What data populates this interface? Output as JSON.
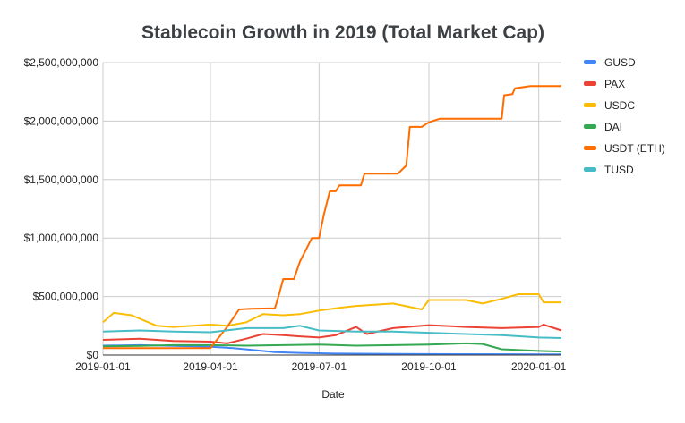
{
  "chart_data": {
    "type": "line",
    "title": "Stablecoin Growth in 2019 (Total Market Cap)",
    "xlabel": "Date",
    "ylabel": "",
    "x_range": [
      "2019-01-01",
      "2020-01-20"
    ],
    "ylim": [
      0,
      2500000000
    ],
    "y_ticks": [
      0,
      500000000,
      1000000000,
      1500000000,
      2000000000,
      2500000000
    ],
    "y_tick_labels": [
      "$0",
      "$500,000,000",
      "$1,000,000,000",
      "$1,500,000,000",
      "$2,000,000,000",
      "$2,500,000,000"
    ],
    "x_ticks": [
      "2019-01-01",
      "2019-04-01",
      "2019-07-01",
      "2019-10-01",
      "2020-01-01"
    ],
    "x_tick_labels": [
      "2019-01-01",
      "2019-04-01",
      "2019-07-01",
      "2019-10-01",
      "2020-01-01"
    ],
    "grid": true,
    "legend_position": "right",
    "series": [
      {
        "name": "GUSD",
        "color": "#4285f4",
        "points": [
          [
            "2019-01-01",
            80000000
          ],
          [
            "2019-02-01",
            85000000
          ],
          [
            "2019-03-01",
            78000000
          ],
          [
            "2019-04-01",
            70000000
          ],
          [
            "2019-04-20",
            60000000
          ],
          [
            "2019-05-10",
            40000000
          ],
          [
            "2019-05-25",
            25000000
          ],
          [
            "2019-06-15",
            18000000
          ],
          [
            "2019-07-15",
            12000000
          ],
          [
            "2019-09-01",
            10000000
          ],
          [
            "2019-11-01",
            8000000
          ],
          [
            "2020-01-20",
            6000000
          ]
        ]
      },
      {
        "name": "PAX",
        "color": "#ea4335",
        "points": [
          [
            "2019-01-01",
            130000000
          ],
          [
            "2019-02-01",
            140000000
          ],
          [
            "2019-03-01",
            120000000
          ],
          [
            "2019-04-01",
            115000000
          ],
          [
            "2019-04-15",
            100000000
          ],
          [
            "2019-05-01",
            140000000
          ],
          [
            "2019-05-15",
            180000000
          ],
          [
            "2019-06-01",
            170000000
          ],
          [
            "2019-06-15",
            160000000
          ],
          [
            "2019-07-01",
            150000000
          ],
          [
            "2019-07-15",
            170000000
          ],
          [
            "2019-08-01",
            240000000
          ],
          [
            "2019-08-10",
            180000000
          ],
          [
            "2019-09-01",
            230000000
          ],
          [
            "2019-10-01",
            255000000
          ],
          [
            "2019-11-01",
            240000000
          ],
          [
            "2019-12-01",
            230000000
          ],
          [
            "2020-01-01",
            240000000
          ],
          [
            "2020-01-05",
            260000000
          ],
          [
            "2020-01-20",
            210000000
          ]
        ]
      },
      {
        "name": "USDC",
        "color": "#fbbc04",
        "points": [
          [
            "2019-01-01",
            280000000
          ],
          [
            "2019-01-10",
            360000000
          ],
          [
            "2019-01-25",
            340000000
          ],
          [
            "2019-02-15",
            250000000
          ],
          [
            "2019-03-01",
            240000000
          ],
          [
            "2019-04-01",
            260000000
          ],
          [
            "2019-04-15",
            250000000
          ],
          [
            "2019-05-01",
            280000000
          ],
          [
            "2019-05-15",
            350000000
          ],
          [
            "2019-06-01",
            340000000
          ],
          [
            "2019-06-15",
            350000000
          ],
          [
            "2019-07-01",
            380000000
          ],
          [
            "2019-07-15",
            400000000
          ],
          [
            "2019-08-01",
            420000000
          ],
          [
            "2019-09-01",
            440000000
          ],
          [
            "2019-09-25",
            390000000
          ],
          [
            "2019-10-01",
            470000000
          ],
          [
            "2019-11-01",
            470000000
          ],
          [
            "2019-11-15",
            440000000
          ],
          [
            "2019-12-01",
            480000000
          ],
          [
            "2019-12-15",
            520000000
          ],
          [
            "2020-01-01",
            520000000
          ],
          [
            "2020-01-05",
            450000000
          ],
          [
            "2020-01-20",
            450000000
          ]
        ]
      },
      {
        "name": "DAI",
        "color": "#34a853",
        "points": [
          [
            "2019-01-01",
            75000000
          ],
          [
            "2019-02-01",
            78000000
          ],
          [
            "2019-03-01",
            85000000
          ],
          [
            "2019-04-01",
            85000000
          ],
          [
            "2019-05-01",
            80000000
          ],
          [
            "2019-06-01",
            85000000
          ],
          [
            "2019-07-01",
            90000000
          ],
          [
            "2019-08-01",
            80000000
          ],
          [
            "2019-09-01",
            85000000
          ],
          [
            "2019-10-01",
            90000000
          ],
          [
            "2019-11-01",
            100000000
          ],
          [
            "2019-11-15",
            95000000
          ],
          [
            "2019-12-01",
            50000000
          ],
          [
            "2020-01-01",
            35000000
          ],
          [
            "2020-01-20",
            30000000
          ]
        ]
      },
      {
        "name": "USDT (ETH)",
        "color": "#ff6d01",
        "points": [
          [
            "2019-01-01",
            60000000
          ],
          [
            "2019-03-01",
            60000000
          ],
          [
            "2019-04-01",
            60000000
          ],
          [
            "2019-04-08",
            150000000
          ],
          [
            "2019-04-15",
            240000000
          ],
          [
            "2019-04-25",
            390000000
          ],
          [
            "2019-05-05",
            395000000
          ],
          [
            "2019-05-25",
            400000000
          ],
          [
            "2019-05-28",
            500000000
          ],
          [
            "2019-06-01",
            650000000
          ],
          [
            "2019-06-10",
            650000000
          ],
          [
            "2019-06-15",
            800000000
          ],
          [
            "2019-06-20",
            900000000
          ],
          [
            "2019-06-25",
            1000000000
          ],
          [
            "2019-07-01",
            1000000000
          ],
          [
            "2019-07-05",
            1200000000
          ],
          [
            "2019-07-10",
            1400000000
          ],
          [
            "2019-07-15",
            1400000000
          ],
          [
            "2019-07-18",
            1450000000
          ],
          [
            "2019-08-05",
            1450000000
          ],
          [
            "2019-08-08",
            1550000000
          ],
          [
            "2019-09-05",
            1550000000
          ],
          [
            "2019-09-12",
            1620000000
          ],
          [
            "2019-09-15",
            1950000000
          ],
          [
            "2019-09-25",
            1950000000
          ],
          [
            "2019-10-01",
            1990000000
          ],
          [
            "2019-10-10",
            2020000000
          ],
          [
            "2019-12-01",
            2020000000
          ],
          [
            "2019-12-03",
            2220000000
          ],
          [
            "2019-12-10",
            2230000000
          ],
          [
            "2019-12-12",
            2280000000
          ],
          [
            "2019-12-25",
            2300000000
          ],
          [
            "2020-01-20",
            2300000000
          ]
        ]
      },
      {
        "name": "TUSD",
        "color": "#46bdc6",
        "points": [
          [
            "2019-01-01",
            200000000
          ],
          [
            "2019-02-01",
            210000000
          ],
          [
            "2019-03-01",
            200000000
          ],
          [
            "2019-04-01",
            195000000
          ],
          [
            "2019-05-01",
            230000000
          ],
          [
            "2019-06-01",
            230000000
          ],
          [
            "2019-06-15",
            250000000
          ],
          [
            "2019-07-01",
            210000000
          ],
          [
            "2019-08-01",
            200000000
          ],
          [
            "2019-09-01",
            200000000
          ],
          [
            "2019-10-01",
            190000000
          ],
          [
            "2019-11-01",
            180000000
          ],
          [
            "2019-12-01",
            170000000
          ],
          [
            "2020-01-01",
            150000000
          ],
          [
            "2020-01-20",
            145000000
          ]
        ]
      }
    ]
  }
}
